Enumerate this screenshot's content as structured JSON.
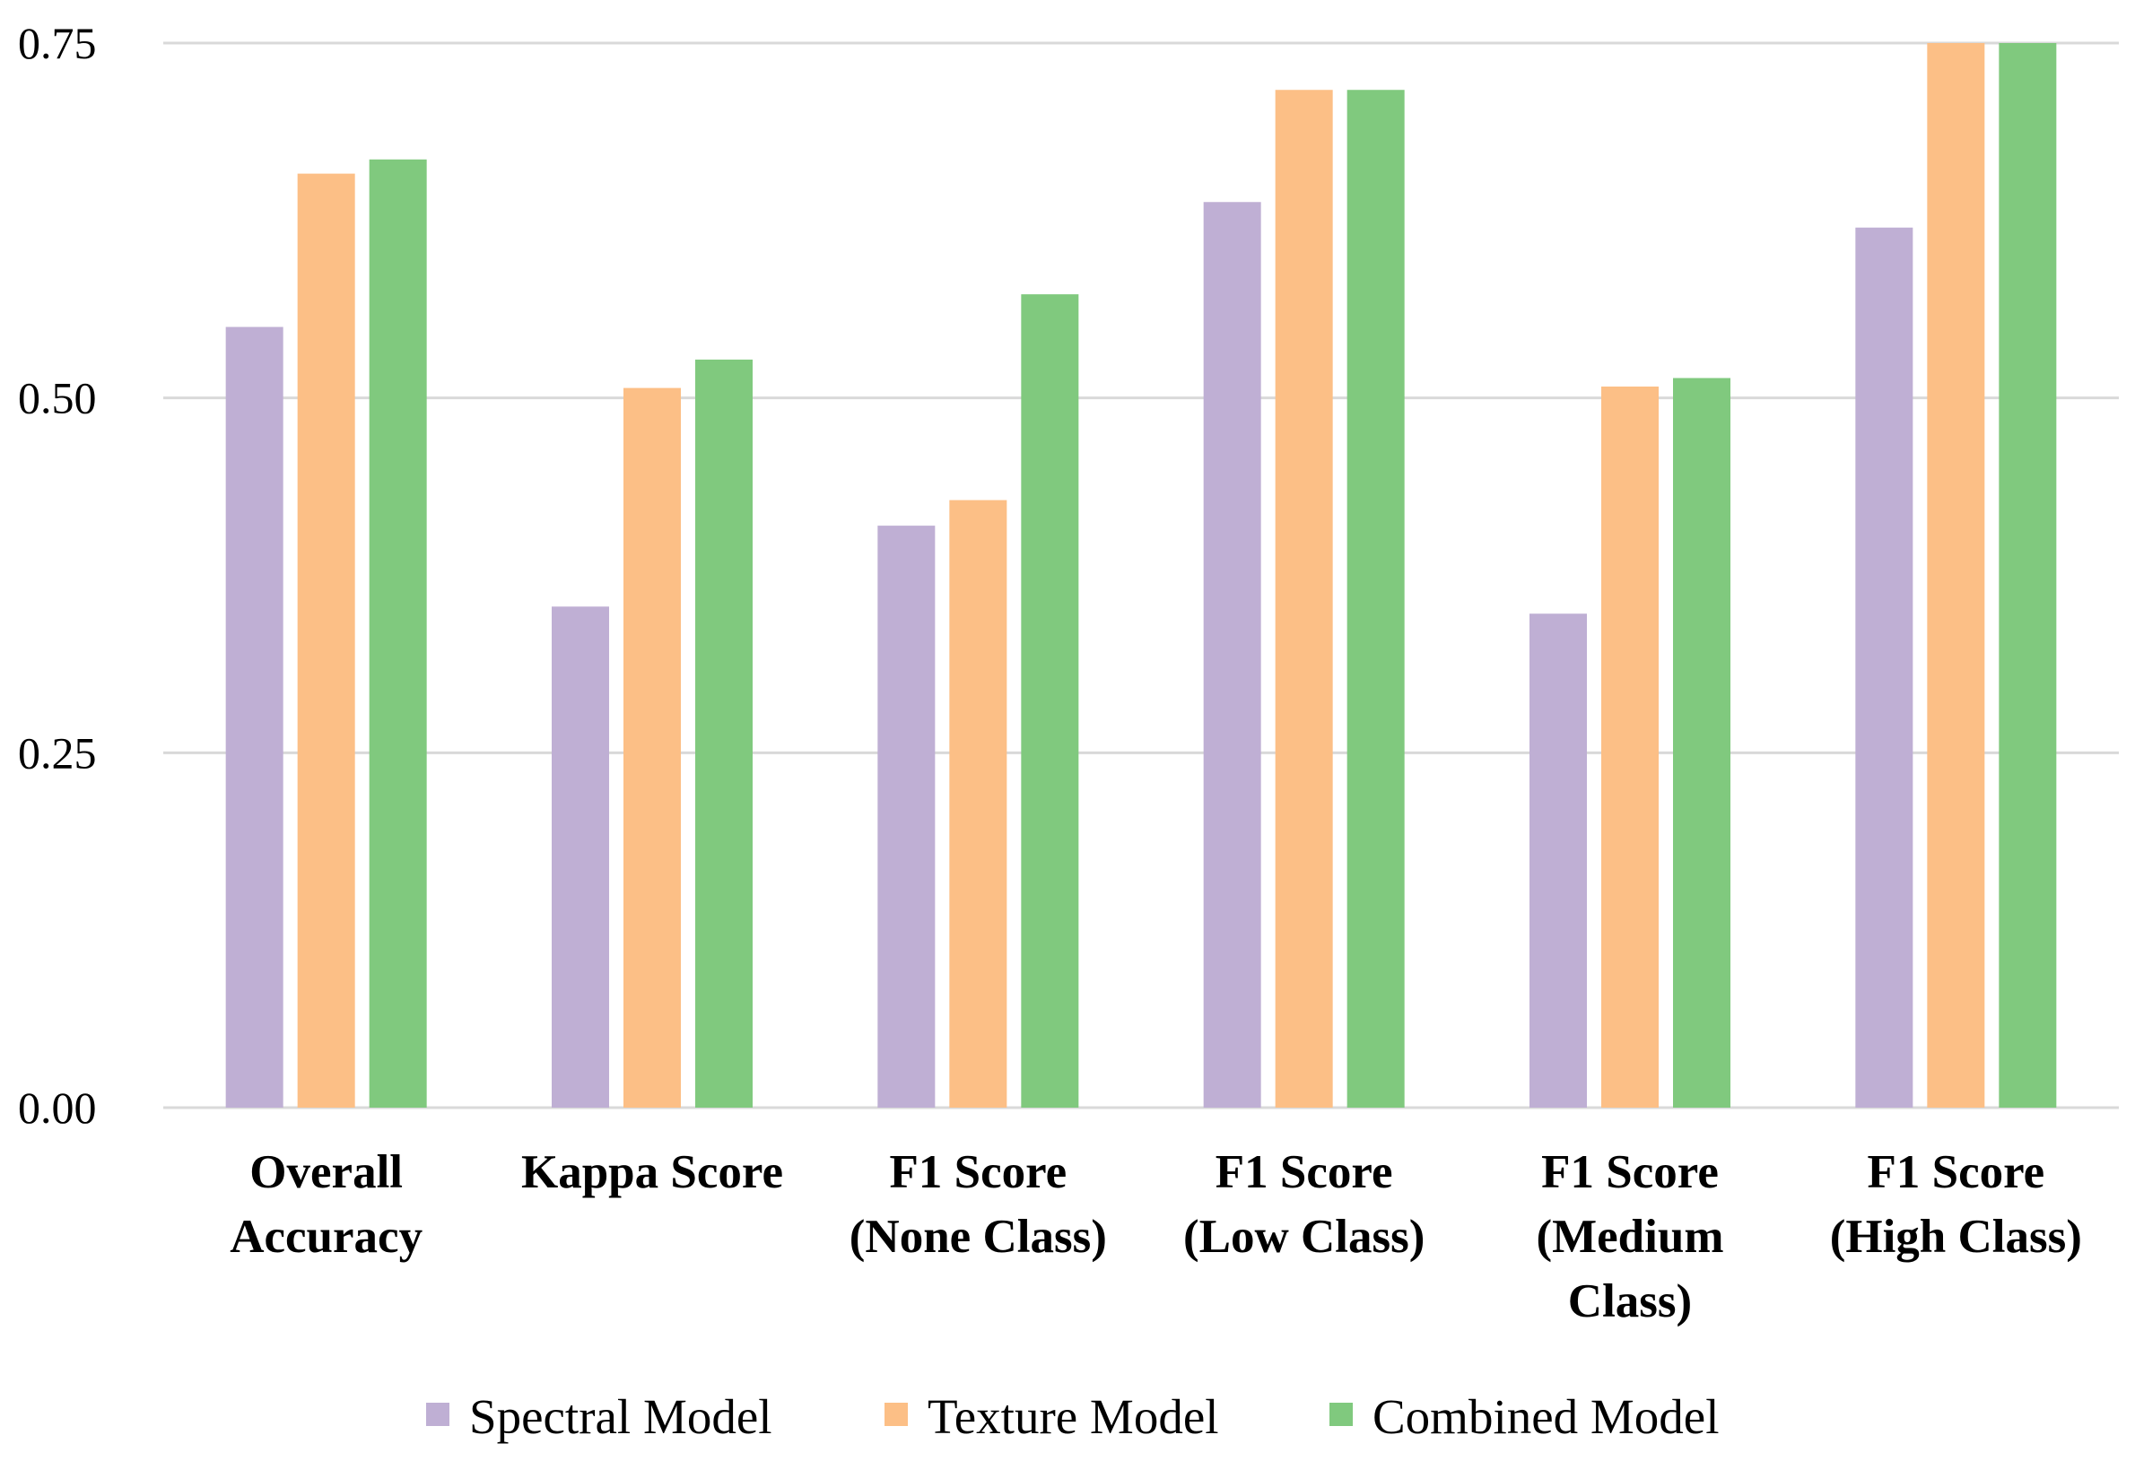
{
  "chart_data": {
    "type": "bar",
    "title": "",
    "xlabel": "",
    "ylabel": "",
    "ylim": [
      0,
      0.75
    ],
    "yticks": [
      0.0,
      0.25,
      0.5,
      0.75
    ],
    "ytick_labels": [
      "0.00",
      "0.25",
      "0.50",
      "0.75"
    ],
    "grid": true,
    "legend_position": "bottom",
    "categories": [
      [
        "Overall",
        "Accuracy"
      ],
      [
        "Kappa Score"
      ],
      [
        "F1 Score",
        "(None Class)"
      ],
      [
        "F1 Score",
        "(Low Class)"
      ],
      [
        "F1 Score",
        "(Medium",
        "Class)"
      ],
      [
        "F1 Score",
        "(High Class)"
      ]
    ],
    "series": [
      {
        "name": "Spectral Model",
        "color": "#bfafd4",
        "values": [
          0.55,
          0.353,
          0.41,
          0.638,
          0.348,
          0.62
        ]
      },
      {
        "name": "Texture Model",
        "color": "#fcbf86",
        "values": [
          0.658,
          0.507,
          0.428,
          0.717,
          0.508,
          0.75
        ]
      },
      {
        "name": "Combined Model",
        "color": "#80c97e",
        "values": [
          0.668,
          0.527,
          0.573,
          0.717,
          0.514,
          0.75
        ]
      }
    ]
  }
}
